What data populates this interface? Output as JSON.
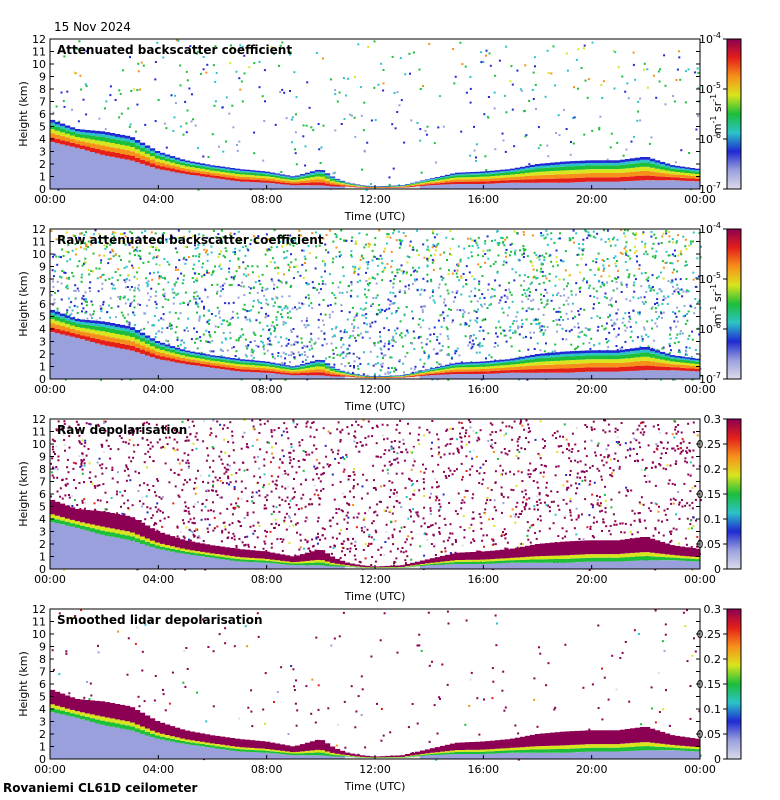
{
  "date": "15 Nov 2024",
  "footer": "Rovaniemi CL61D ceilometer",
  "colors": {
    "scale": [
      "#dcdcec",
      "#9aa0dc",
      "#1f2ad2",
      "#2cc3c8",
      "#1dbe3a",
      "#d9e51e",
      "#f7901a",
      "#e41f1a",
      "#8b0052"
    ],
    "mask": "#e2e2e2"
  },
  "chart_data": [
    {
      "type": "heatmap",
      "title": "Attenuated backscatter coefficient",
      "xlabel": "Time (UTC)",
      "ylabel": "Height (km)",
      "xlim": [
        0,
        24
      ],
      "ylim": [
        0,
        12
      ],
      "x_ticks": [
        0,
        4,
        8,
        12,
        16,
        20,
        24
      ],
      "x_tick_labels": [
        "00:00",
        "04:00",
        "08:00",
        "12:00",
        "16:00",
        "20:00",
        "00:00"
      ],
      "y_ticks": [
        0,
        1,
        2,
        3,
        4,
        5,
        6,
        7,
        8,
        9,
        10,
        11,
        12
      ],
      "y_tick_labels": [
        "0",
        "1",
        "2",
        "3",
        "4",
        "5",
        "6",
        "7",
        "8",
        "9",
        "10",
        "11",
        "12"
      ],
      "colorbar": {
        "scale": "log",
        "range": [
          1e-07,
          0.0001
        ],
        "tick_values": [
          1e-07,
          1e-06,
          1e-05,
          0.0001
        ],
        "tick_labels": [
          {
            "base": "10",
            "exp": "-7"
          },
          {
            "base": "10",
            "exp": "-6"
          },
          {
            "base": "10",
            "exp": "-5"
          },
          {
            "base": "10",
            "exp": "-4"
          }
        ],
        "unit_label": {
          "m": "m",
          "m_exp": "-1",
          "sr": "sr",
          "sr_exp": "-1"
        }
      },
      "cloud_layer": {
        "time_h": [
          0,
          1,
          2,
          3,
          4,
          5,
          6,
          7,
          8,
          9,
          10,
          10.5,
          11,
          11.5,
          12,
          13,
          14,
          15,
          16,
          17,
          18,
          19,
          20,
          21,
          22,
          23,
          24
        ],
        "top_km": [
          5.6,
          4.8,
          4.6,
          4.2,
          3.0,
          2.3,
          1.9,
          1.6,
          1.4,
          1.0,
          1.6,
          0.9,
          0.5,
          0.3,
          0.2,
          0.3,
          0.8,
          1.3,
          1.4,
          1.6,
          2.0,
          2.2,
          2.3,
          2.3,
          2.6,
          1.9,
          1.6
        ],
        "base_km": [
          3.8,
          3.3,
          2.7,
          2.3,
          1.6,
          1.2,
          0.9,
          0.6,
          0.5,
          0.3,
          0.3,
          0.2,
          0.2,
          0.1,
          0.1,
          0.1,
          0.3,
          0.4,
          0.4,
          0.5,
          0.5,
          0.5,
          0.6,
          0.6,
          0.7,
          0.7,
          0.6
        ]
      },
      "noise_level": 0.12
    },
    {
      "type": "heatmap",
      "title": "Raw attenuated backscatter coefficient",
      "xlabel": "Time (UTC)",
      "ylabel": "Height (km)",
      "xlim": [
        0,
        24
      ],
      "ylim": [
        0,
        12
      ],
      "x_ticks": [
        0,
        4,
        8,
        12,
        16,
        20,
        24
      ],
      "x_tick_labels": [
        "00:00",
        "04:00",
        "08:00",
        "12:00",
        "16:00",
        "20:00",
        "00:00"
      ],
      "y_ticks": [
        0,
        1,
        2,
        3,
        4,
        5,
        6,
        7,
        8,
        9,
        10,
        11,
        12
      ],
      "y_tick_labels": [
        "0",
        "1",
        "2",
        "3",
        "4",
        "5",
        "6",
        "7",
        "8",
        "9",
        "10",
        "11",
        "12"
      ],
      "colorbar": {
        "scale": "log",
        "range": [
          1e-07,
          0.0001
        ],
        "tick_values": [
          1e-07,
          1e-06,
          1e-05,
          0.0001
        ],
        "tick_labels": [
          {
            "base": "10",
            "exp": "-7"
          },
          {
            "base": "10",
            "exp": "-6"
          },
          {
            "base": "10",
            "exp": "-5"
          },
          {
            "base": "10",
            "exp": "-4"
          }
        ],
        "unit_label": {
          "m": "m",
          "m_exp": "-1",
          "sr": "sr",
          "sr_exp": "-1"
        }
      },
      "cloud_layer": {
        "time_h": [
          0,
          1,
          2,
          3,
          4,
          5,
          6,
          7,
          8,
          9,
          10,
          10.5,
          11,
          11.5,
          12,
          13,
          14,
          15,
          16,
          17,
          18,
          19,
          20,
          21,
          22,
          23,
          24
        ],
        "top_km": [
          5.6,
          4.8,
          4.6,
          4.2,
          3.0,
          2.3,
          1.9,
          1.6,
          1.4,
          1.0,
          1.6,
          0.9,
          0.5,
          0.3,
          0.2,
          0.3,
          0.8,
          1.3,
          1.4,
          1.6,
          2.0,
          2.2,
          2.3,
          2.3,
          2.6,
          1.9,
          1.6
        ],
        "base_km": [
          3.8,
          3.3,
          2.7,
          2.3,
          1.6,
          1.2,
          0.9,
          0.6,
          0.5,
          0.3,
          0.3,
          0.2,
          0.2,
          0.1,
          0.1,
          0.1,
          0.3,
          0.4,
          0.4,
          0.5,
          0.5,
          0.5,
          0.6,
          0.6,
          0.7,
          0.7,
          0.6
        ]
      },
      "noise_level": 0.7
    },
    {
      "type": "heatmap",
      "title": "Raw depolarisation",
      "xlabel": "Time (UTC)",
      "ylabel": "Height (km)",
      "xlim": [
        0,
        24
      ],
      "ylim": [
        0,
        12
      ],
      "x_ticks": [
        0,
        4,
        8,
        12,
        16,
        20,
        24
      ],
      "x_tick_labels": [
        "00:00",
        "04:00",
        "08:00",
        "12:00",
        "16:00",
        "20:00",
        "00:00"
      ],
      "y_ticks": [
        0,
        1,
        2,
        3,
        4,
        5,
        6,
        7,
        8,
        9,
        10,
        11,
        12
      ],
      "y_tick_labels": [
        "0",
        "1",
        "2",
        "3",
        "4",
        "5",
        "6",
        "7",
        "8",
        "9",
        "10",
        "11",
        "12"
      ],
      "colorbar": {
        "scale": "linear",
        "range": [
          0,
          0.3
        ],
        "tick_values": [
          0,
          0.05,
          0.1,
          0.15,
          0.2,
          0.25,
          0.3
        ],
        "tick_labels": [
          "0",
          "0.05",
          "0.1",
          "0.15",
          "0.2",
          "0.25",
          "0.3"
        ]
      },
      "cloud_layer": {
        "time_h": [
          0,
          1,
          2,
          3,
          4,
          5,
          6,
          7,
          8,
          9,
          10,
          10.5,
          11,
          11.5,
          12,
          13,
          14,
          15,
          16,
          17,
          18,
          19,
          20,
          21,
          22,
          23,
          24
        ],
        "top_km": [
          5.6,
          4.8,
          4.6,
          4.2,
          3.0,
          2.3,
          1.9,
          1.6,
          1.4,
          1.0,
          1.6,
          0.9,
          0.5,
          0.3,
          0.2,
          0.3,
          0.8,
          1.3,
          1.4,
          1.6,
          2.0,
          2.2,
          2.3,
          2.3,
          2.6,
          1.9,
          1.6
        ],
        "base_km": [
          3.8,
          3.3,
          2.7,
          2.3,
          1.6,
          1.2,
          0.9,
          0.6,
          0.5,
          0.3,
          0.3,
          0.2,
          0.2,
          0.1,
          0.1,
          0.1,
          0.3,
          0.4,
          0.4,
          0.5,
          0.5,
          0.5,
          0.6,
          0.6,
          0.7,
          0.7,
          0.6
        ]
      },
      "noise_level": 0.55
    },
    {
      "type": "heatmap",
      "title": "Smoothed lidar depolarisation",
      "xlabel": "Time (UTC)",
      "ylabel": "Height (km)",
      "xlim": [
        0,
        24
      ],
      "ylim": [
        0,
        12
      ],
      "x_ticks": [
        0,
        4,
        8,
        12,
        16,
        20,
        24
      ],
      "x_tick_labels": [
        "00:00",
        "04:00",
        "08:00",
        "12:00",
        "16:00",
        "20:00",
        "00:00"
      ],
      "y_ticks": [
        0,
        1,
        2,
        3,
        4,
        5,
        6,
        7,
        8,
        9,
        10,
        11,
        12
      ],
      "y_tick_labels": [
        "0",
        "1",
        "2",
        "3",
        "4",
        "5",
        "6",
        "7",
        "8",
        "9",
        "10",
        "11",
        "12"
      ],
      "colorbar": {
        "scale": "linear",
        "range": [
          0,
          0.3
        ],
        "tick_values": [
          0,
          0.05,
          0.1,
          0.15,
          0.2,
          0.25,
          0.3
        ],
        "tick_labels": [
          "0",
          "0.05",
          "0.1",
          "0.15",
          "0.2",
          "0.25",
          "0.3"
        ]
      },
      "cloud_layer": {
        "time_h": [
          0,
          1,
          2,
          3,
          4,
          5,
          6,
          7,
          8,
          9,
          10,
          10.5,
          11,
          11.5,
          12,
          13,
          14,
          15,
          16,
          17,
          18,
          19,
          20,
          21,
          22,
          23,
          24
        ],
        "top_km": [
          5.6,
          4.8,
          4.6,
          4.2,
          3.0,
          2.3,
          1.9,
          1.6,
          1.4,
          1.0,
          1.6,
          0.9,
          0.5,
          0.3,
          0.2,
          0.3,
          0.8,
          1.3,
          1.4,
          1.6,
          2.0,
          2.2,
          2.3,
          2.3,
          2.6,
          1.9,
          1.6
        ],
        "base_km": [
          3.8,
          3.3,
          2.7,
          2.3,
          1.6,
          1.2,
          0.9,
          0.6,
          0.5,
          0.3,
          0.3,
          0.2,
          0.2,
          0.1,
          0.1,
          0.1,
          0.3,
          0.4,
          0.4,
          0.5,
          0.5,
          0.5,
          0.6,
          0.6,
          0.7,
          0.7,
          0.6
        ]
      },
      "noise_level": 0.06
    }
  ]
}
